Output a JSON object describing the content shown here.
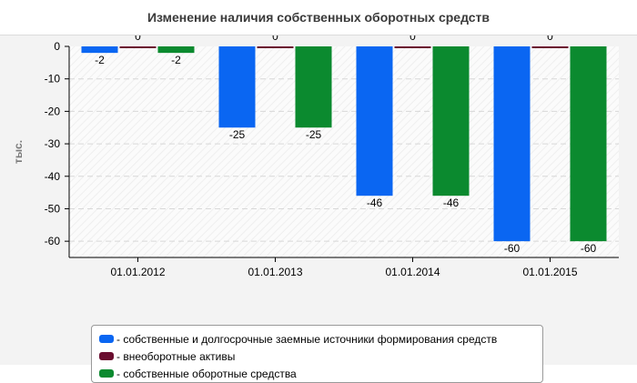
{
  "colors": {
    "series1": "#0a66f2",
    "series2": "#6a0d2f",
    "series3": "#0b8a2f"
  },
  "chart_data": {
    "type": "bar",
    "title": "Изменение наличия собственных оборотных средств",
    "ylabel": "тыс.",
    "categories": [
      "01.01.2012",
      "01.01.2013",
      "01.01.2014",
      "01.01.2015"
    ],
    "ylim": [
      -65,
      0
    ],
    "yticks": [
      0,
      -10,
      -20,
      -30,
      -40,
      -50,
      -60
    ],
    "grid": true,
    "legend_position": "bottom",
    "series": [
      {
        "name": "- собственные и долгосрочные заемные источники формирования средств",
        "values": [
          -2,
          -25,
          -46,
          -60
        ]
      },
      {
        "name": "- внеоборотные активы",
        "values": [
          0,
          0,
          0,
          0
        ]
      },
      {
        "name": "- собственные оборотные средства",
        "values": [
          -2,
          -25,
          -46,
          -60
        ]
      }
    ]
  }
}
